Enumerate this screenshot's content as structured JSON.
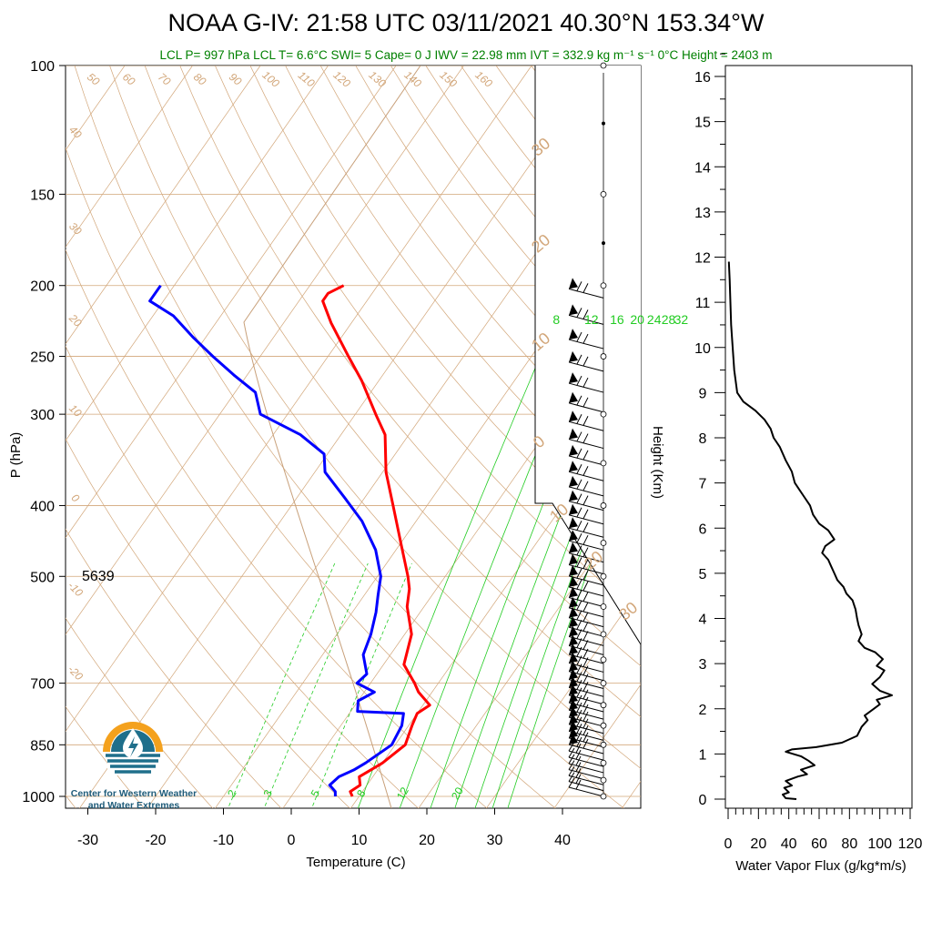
{
  "title": "NOAA G-IV: 21:58 UTC 03/11/2021  40.30°N 153.34°W",
  "subtitle": "LCL P= 997 hPa  LCL T= 6.6°C  SWI= 5  Cape= 0 J  IWV = 22.98 mm  IVT = 332.9 kg m⁻¹ s⁻¹  0°C Height = 2403 m",
  "logo": {
    "line1": "Center for Western Weather",
    "line2": "and Water Extremes"
  },
  "colors": {
    "temperature": "#ff0000",
    "dewpoint": "#0000ff",
    "reference_tan": "#d2a679",
    "mixing_ratio": "#22cc22",
    "subtitle": "#008000",
    "logo_orange": "#f4a11d",
    "logo_teal": "#1f6f8b"
  },
  "chart_data": [
    {
      "type": "line",
      "subtype": "skew-T log-P diagram",
      "xlabel": "Temperature (C)",
      "ylabel": "P (hPa)",
      "xticks": [
        -30,
        -20,
        -10,
        0,
        10,
        20,
        30,
        40
      ],
      "yticks": [
        100,
        150,
        200,
        250,
        300,
        400,
        500,
        700,
        850,
        1000
      ],
      "xlim": [
        -34,
        51
      ],
      "ylim": [
        1050,
        100
      ],
      "y_scale": "log",
      "annotation_500": "5639",
      "dry_adiabat_labels": [
        "50",
        "60",
        "70",
        "80",
        "90",
        "100",
        "110",
        "120",
        "130",
        "140",
        "150",
        "160"
      ],
      "skew_isotherm_labels": [
        "40",
        "30",
        "20",
        "10",
        "0",
        "-10",
        "-20"
      ],
      "right_isotherm_labels": [
        "30",
        "20",
        "10",
        "0",
        "10",
        "20",
        "30"
      ],
      "mixing_ratio_labels_top": [
        "8",
        "12",
        "16",
        "20",
        "24",
        "28",
        "32"
      ],
      "mixing_ratio_labels_bottom": [
        "2",
        "3",
        "5",
        "8",
        "12",
        "20"
      ],
      "series": [
        {
          "name": "Temperature",
          "points": [
            {
              "p": 1000,
              "t": 9.0
            },
            {
              "p": 985,
              "t": 8.2
            },
            {
              "p": 965,
              "t": 9.0
            },
            {
              "p": 940,
              "t": 8.0
            },
            {
              "p": 920,
              "t": 9.0
            },
            {
              "p": 900,
              "t": 10.0
            },
            {
              "p": 850,
              "t": 11.5
            },
            {
              "p": 800,
              "t": 10.5
            },
            {
              "p": 770,
              "t": 10.0
            },
            {
              "p": 750,
              "t": 11.0
            },
            {
              "p": 720,
              "t": 8.0
            },
            {
              "p": 700,
              "t": 6.5
            },
            {
              "p": 660,
              "t": 3.0
            },
            {
              "p": 600,
              "t": 1.0
            },
            {
              "p": 550,
              "t": -2.5
            },
            {
              "p": 520,
              "t": -4.0
            },
            {
              "p": 500,
              "t": -5.5
            },
            {
              "p": 450,
              "t": -10.0
            },
            {
              "p": 400,
              "t": -15.0
            },
            {
              "p": 360,
              "t": -19.5
            },
            {
              "p": 320,
              "t": -23.5
            },
            {
              "p": 300,
              "t": -27.0
            },
            {
              "p": 270,
              "t": -32.5
            },
            {
              "p": 250,
              "t": -37.0
            },
            {
              "p": 225,
              "t": -43.0
            },
            {
              "p": 210,
              "t": -46.5
            },
            {
              "p": 205,
              "t": -46.5
            },
            {
              "p": 200,
              "t": -45.0
            }
          ]
        },
        {
          "name": "Dewpoint",
          "points": [
            {
              "p": 1000,
              "t": 6.5
            },
            {
              "p": 985,
              "t": 6.0
            },
            {
              "p": 965,
              "t": 4.5
            },
            {
              "p": 940,
              "t": 5.0
            },
            {
              "p": 920,
              "t": 6.5
            },
            {
              "p": 900,
              "t": 7.5
            },
            {
              "p": 850,
              "t": 9.5
            },
            {
              "p": 800,
              "t": 9.0
            },
            {
              "p": 770,
              "t": 8.0
            },
            {
              "p": 765,
              "t": 1.0
            },
            {
              "p": 740,
              "t": 0.0
            },
            {
              "p": 720,
              "t": 1.5
            },
            {
              "p": 700,
              "t": -2.0
            },
            {
              "p": 680,
              "t": -1.5
            },
            {
              "p": 640,
              "t": -4.0
            },
            {
              "p": 600,
              "t": -5.0
            },
            {
              "p": 560,
              "t": -6.5
            },
            {
              "p": 530,
              "t": -8.0
            },
            {
              "p": 500,
              "t": -9.5
            },
            {
              "p": 460,
              "t": -13.0
            },
            {
              "p": 420,
              "t": -18.0
            },
            {
              "p": 390,
              "t": -23.0
            },
            {
              "p": 360,
              "t": -28.5
            },
            {
              "p": 340,
              "t": -30.5
            },
            {
              "p": 320,
              "t": -36.0
            },
            {
              "p": 300,
              "t": -44.0
            },
            {
              "p": 280,
              "t": -47.0
            },
            {
              "p": 265,
              "t": -52.0
            },
            {
              "p": 250,
              "t": -57.0
            },
            {
              "p": 235,
              "t": -62.0
            },
            {
              "p": 220,
              "t": -67.0
            },
            {
              "p": 210,
              "t": -72.0
            },
            {
              "p": 200,
              "t": -72.0
            }
          ]
        }
      ],
      "wind_barb_pressures": [
        1000,
        950,
        900,
        850,
        800,
        750,
        700,
        650,
        600,
        550,
        500,
        450,
        400,
        350,
        300,
        250,
        200
      ]
    },
    {
      "type": "line",
      "xlabel": "Water Vapor Flux (g/kg*m/s)",
      "ylabel": "Height (Km)",
      "xticks": [
        0,
        20,
        40,
        60,
        80,
        100,
        120
      ],
      "yticks": [
        0,
        1,
        2,
        3,
        4,
        5,
        6,
        7,
        8,
        9,
        10,
        11,
        12,
        13,
        14,
        15,
        16
      ],
      "xlim": [
        0,
        120
      ],
      "ylim": [
        -0.3,
        16.4
      ],
      "series": [
        {
          "name": "",
          "points": [
            {
              "x": 45,
              "y": 0.0
            },
            {
              "x": 38,
              "y": 0.02
            },
            {
              "x": 36,
              "y": 0.1
            },
            {
              "x": 40,
              "y": 0.15
            },
            {
              "x": 37,
              "y": 0.25
            },
            {
              "x": 42,
              "y": 0.3
            },
            {
              "x": 38,
              "y": 0.4
            },
            {
              "x": 46,
              "y": 0.5
            },
            {
              "x": 52,
              "y": 0.55
            },
            {
              "x": 48,
              "y": 0.65
            },
            {
              "x": 57,
              "y": 0.75
            },
            {
              "x": 53,
              "y": 0.85
            },
            {
              "x": 48,
              "y": 0.95
            },
            {
              "x": 38,
              "y": 1.05
            },
            {
              "x": 42,
              "y": 1.1
            },
            {
              "x": 58,
              "y": 1.15
            },
            {
              "x": 75,
              "y": 1.25
            },
            {
              "x": 85,
              "y": 1.4
            },
            {
              "x": 88,
              "y": 1.6
            },
            {
              "x": 92,
              "y": 1.75
            },
            {
              "x": 90,
              "y": 1.85
            },
            {
              "x": 96,
              "y": 2.0
            },
            {
              "x": 100,
              "y": 2.1
            },
            {
              "x": 98,
              "y": 2.2
            },
            {
              "x": 108,
              "y": 2.3
            },
            {
              "x": 100,
              "y": 2.4
            },
            {
              "x": 95,
              "y": 2.55
            },
            {
              "x": 100,
              "y": 2.7
            },
            {
              "x": 103,
              "y": 2.85
            },
            {
              "x": 98,
              "y": 2.95
            },
            {
              "x": 102,
              "y": 3.1
            },
            {
              "x": 97,
              "y": 3.25
            },
            {
              "x": 90,
              "y": 3.35
            },
            {
              "x": 86,
              "y": 3.5
            },
            {
              "x": 88,
              "y": 3.65
            },
            {
              "x": 86,
              "y": 3.85
            },
            {
              "x": 85,
              "y": 4.0
            },
            {
              "x": 84,
              "y": 4.2
            },
            {
              "x": 82,
              "y": 4.4
            },
            {
              "x": 78,
              "y": 4.55
            },
            {
              "x": 76,
              "y": 4.7
            },
            {
              "x": 72,
              "y": 4.85
            },
            {
              "x": 70,
              "y": 5.0
            },
            {
              "x": 68,
              "y": 5.15
            },
            {
              "x": 66,
              "y": 5.3
            },
            {
              "x": 62,
              "y": 5.45
            },
            {
              "x": 64,
              "y": 5.6
            },
            {
              "x": 70,
              "y": 5.75
            },
            {
              "x": 66,
              "y": 5.95
            },
            {
              "x": 60,
              "y": 6.1
            },
            {
              "x": 56,
              "y": 6.3
            },
            {
              "x": 54,
              "y": 6.5
            },
            {
              "x": 50,
              "y": 6.7
            },
            {
              "x": 47,
              "y": 6.85
            },
            {
              "x": 44,
              "y": 7.0
            },
            {
              "x": 42,
              "y": 7.25
            },
            {
              "x": 38,
              "y": 7.5
            },
            {
              "x": 34,
              "y": 7.8
            },
            {
              "x": 30,
              "y": 8.0
            },
            {
              "x": 28,
              "y": 8.2
            },
            {
              "x": 24,
              "y": 8.4
            },
            {
              "x": 18,
              "y": 8.6
            },
            {
              "x": 10,
              "y": 8.8
            },
            {
              "x": 6,
              "y": 9.0
            },
            {
              "x": 4,
              "y": 9.5
            },
            {
              "x": 3,
              "y": 10.0
            },
            {
              "x": 2,
              "y": 10.5
            },
            {
              "x": 1.5,
              "y": 11.0
            },
            {
              "x": 1,
              "y": 11.5
            },
            {
              "x": 0.5,
              "y": 11.9
            }
          ]
        }
      ]
    }
  ]
}
